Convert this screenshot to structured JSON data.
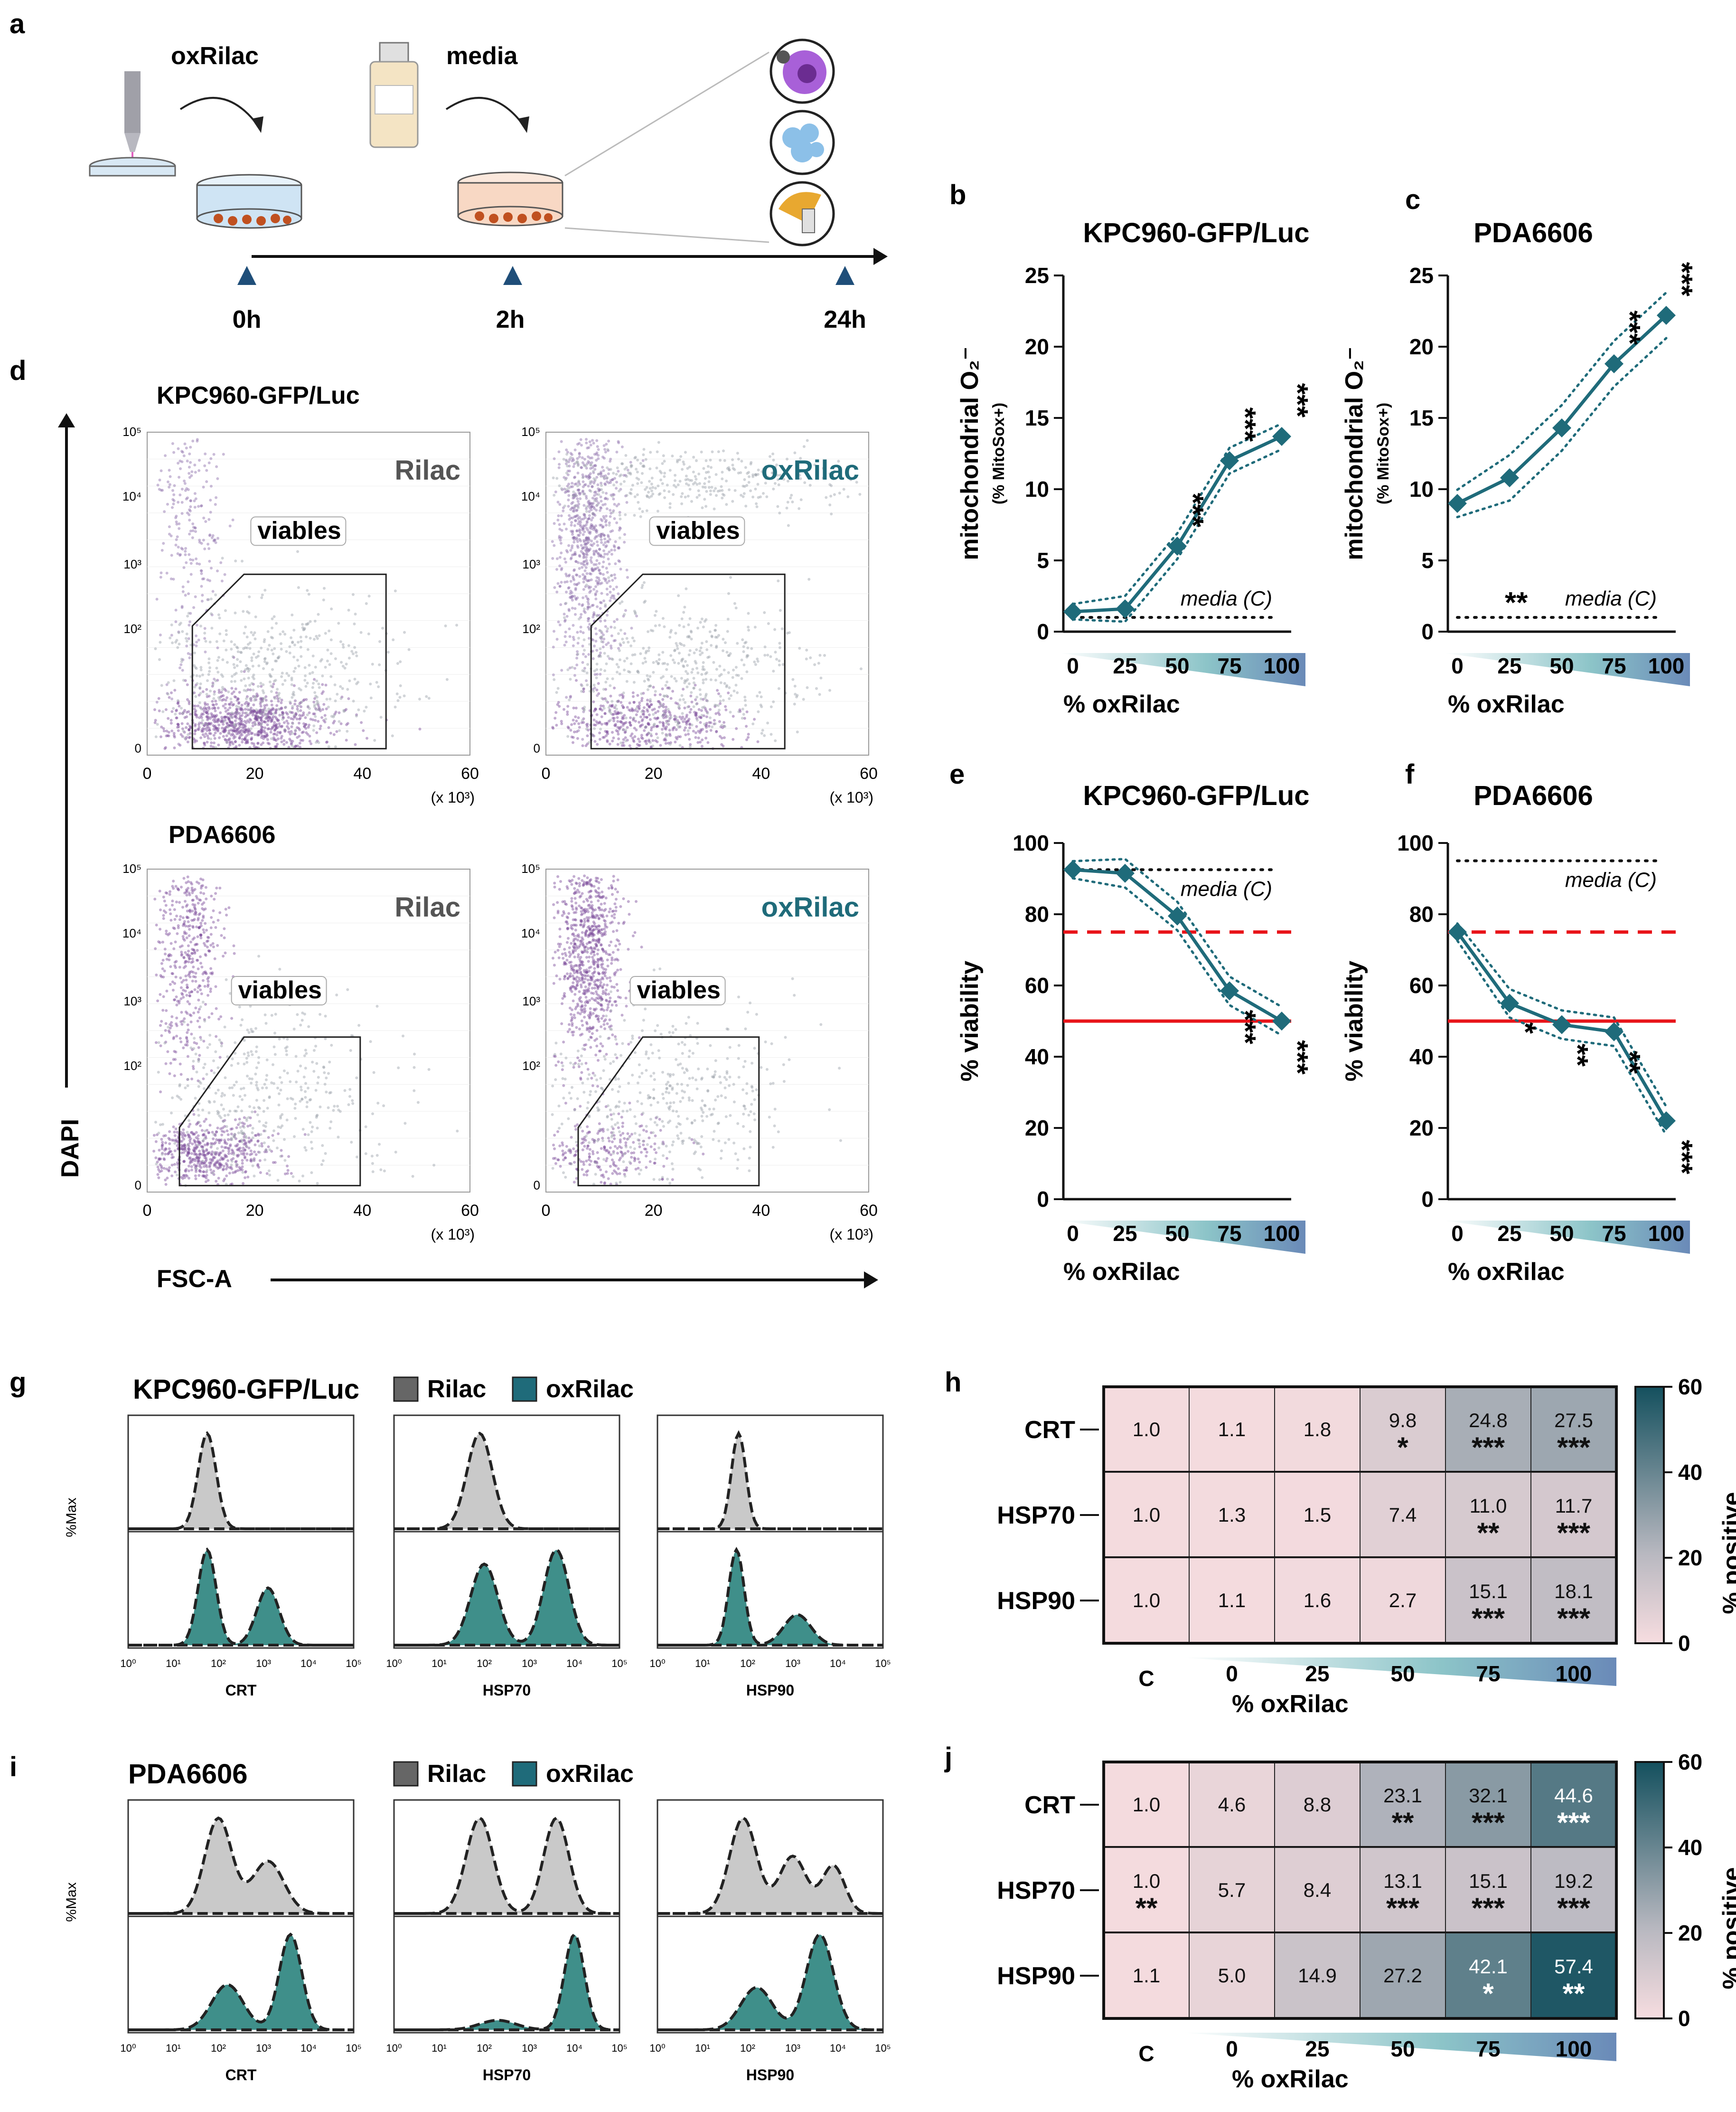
{
  "panel_letters": [
    "a",
    "b",
    "c",
    "d",
    "e",
    "f",
    "g",
    "h",
    "i",
    "j"
  ],
  "panel_a": {
    "labels": {
      "oxrilac": "oxRilac",
      "media": "media"
    },
    "timepoints": [
      "0h",
      "2h",
      "24h"
    ]
  },
  "panel_d": {
    "rows": [
      {
        "title": "KPC960-GFP/Luc",
        "plots": [
          {
            "label": "Rilac",
            "gate": "viables"
          },
          {
            "label": "oxRilac",
            "gate": "viables"
          }
        ]
      },
      {
        "title": "PDA6606",
        "plots": [
          {
            "label": "Rilac",
            "gate": "viables"
          },
          {
            "label": "oxRilac",
            "gate": "viables"
          }
        ]
      }
    ],
    "y_ticks": [
      "10⁵",
      "10⁴",
      "10³",
      "10²",
      "0"
    ],
    "x_ticks": [
      "0",
      "20",
      "40",
      "60"
    ],
    "x_multiplier": "(x 10³)",
    "y_axis_label": "DAPI",
    "x_axis_label": "FSC-A"
  },
  "chart_data": [
    {
      "panel": "b",
      "type": "line",
      "title": "KPC960-GFP/Luc",
      "ylabel": "mitochondrial O₂⁻",
      "ylabel_sub": "(% MitoSox+)",
      "xlabel": "% oxRilac",
      "x": [
        "0",
        "25",
        "50",
        "75",
        "100"
      ],
      "y_ticks": [
        "0",
        "5",
        "10",
        "15",
        "20",
        "25"
      ],
      "ylim": [
        0,
        25
      ],
      "series": [
        {
          "name": "oxRilac",
          "values": [
            1.4,
            1.6,
            6.0,
            12.0,
            13.7
          ]
        }
      ],
      "ci_band": 0.9,
      "reference": {
        "label": "media (C)",
        "value": 1.0
      },
      "significance": [
        "",
        "",
        "***",
        "***",
        "***"
      ],
      "ref_stars": ""
    },
    {
      "panel": "c",
      "type": "line",
      "title": "PDA6606",
      "ylabel": "mitochondrial O₂⁻",
      "ylabel_sub": "(% MitoSox+)",
      "xlabel": "% oxRilac",
      "x": [
        "0",
        "25",
        "50",
        "75",
        "100"
      ],
      "y_ticks": [
        "0",
        "5",
        "10",
        "15",
        "20",
        "25"
      ],
      "ylim": [
        0,
        25
      ],
      "series": [
        {
          "name": "oxRilac",
          "values": [
            9.0,
            10.8,
            14.3,
            18.8,
            22.2
          ]
        }
      ],
      "ci_band": 1.6,
      "reference": {
        "label": "media (C)",
        "value": 1.0
      },
      "significance": [
        "",
        "",
        "",
        "***",
        "***"
      ],
      "ref_stars": "**"
    },
    {
      "panel": "e",
      "type": "line",
      "title": "KPC960-GFP/Luc",
      "ylabel": "% viability",
      "ylabel_sub": "",
      "xlabel": "% oxRilac",
      "x": [
        "0",
        "25",
        "50",
        "75",
        "100"
      ],
      "y_ticks": [
        "0",
        "20",
        "40",
        "60",
        "80",
        "100"
      ],
      "ylim": [
        0,
        100
      ],
      "series": [
        {
          "name": "oxRilac",
          "values": [
            92.5,
            91.5,
            79.5,
            58.5,
            50.0
          ]
        }
      ],
      "ci_band": 4,
      "reference": {
        "label": "media (C)",
        "value": 92.5
      },
      "thresholds": [
        {
          "value": 75,
          "style": "dashed"
        },
        {
          "value": 50,
          "style": "solid"
        }
      ],
      "significance": [
        "",
        "",
        "",
        "***",
        "***"
      ],
      "ref_stars": ""
    },
    {
      "panel": "f",
      "type": "line",
      "title": "PDA6606",
      "ylabel": "% viability",
      "ylabel_sub": "",
      "xlabel": "% oxRilac",
      "x": [
        "0",
        "25",
        "50",
        "75",
        "100"
      ],
      "y_ticks": [
        "0",
        "20",
        "40",
        "60",
        "80",
        "100"
      ],
      "ylim": [
        0,
        100
      ],
      "series": [
        {
          "name": "oxRilac",
          "values": [
            75.0,
            55.0,
            49.0,
            47.0,
            22.0
          ]
        }
      ],
      "ci_band": 4,
      "reference": {
        "label": "media (C)",
        "value": 95.0
      },
      "thresholds": [
        {
          "value": 75,
          "style": "dashed"
        },
        {
          "value": 50,
          "style": "solid"
        }
      ],
      "significance": [
        "",
        "*",
        "**",
        "**",
        "***"
      ],
      "ref_stars": ""
    },
    {
      "panel": "h",
      "type": "heatmap",
      "title": "",
      "rows": [
        "CRT",
        "HSP70",
        "HSP90"
      ],
      "cols": [
        "C",
        "0",
        "25",
        "50",
        "75",
        "100"
      ],
      "values": [
        [
          1.0,
          1.1,
          1.8,
          9.8,
          24.8,
          27.5
        ],
        [
          1.0,
          1.3,
          1.5,
          7.4,
          11.0,
          11.7
        ],
        [
          1.0,
          1.1,
          1.6,
          2.7,
          15.1,
          18.1
        ]
      ],
      "stars": [
        [
          "",
          "",
          "",
          "*",
          "***",
          "***"
        ],
        [
          "",
          "",
          "",
          "",
          "**",
          "***"
        ],
        [
          "",
          "",
          "",
          "",
          "***",
          "***"
        ]
      ],
      "xlabel": "% oxRilac",
      "colorbar_label": "% positive",
      "colorbar_ticks": [
        "0",
        "20",
        "40",
        "60"
      ],
      "range": [
        0,
        60
      ]
    },
    {
      "panel": "j",
      "type": "heatmap",
      "title": "",
      "rows": [
        "CRT",
        "HSP70",
        "HSP90"
      ],
      "cols": [
        "C",
        "0",
        "25",
        "50",
        "75",
        "100"
      ],
      "values": [
        [
          1.0,
          4.6,
          8.8,
          23.1,
          32.1,
          44.6
        ],
        [
          1.0,
          5.7,
          8.4,
          13.1,
          15.1,
          19.2
        ],
        [
          1.1,
          5.0,
          14.9,
          27.2,
          42.1,
          57.4
        ]
      ],
      "stars": [
        [
          "",
          "",
          "",
          "**",
          "***",
          "***"
        ],
        [
          "**",
          "",
          "",
          "***",
          "***",
          "***"
        ],
        [
          "",
          "",
          "",
          "",
          "*",
          "**"
        ]
      ],
      "xlabel": "% oxRilac",
      "colorbar_label": "% positive",
      "colorbar_ticks": [
        "0",
        "20",
        "40",
        "60"
      ],
      "range": [
        0,
        60
      ]
    }
  ],
  "histograms": [
    {
      "panel": "g",
      "title": "KPC960-GFP/Luc",
      "legend": [
        "Rilac",
        "oxRilac"
      ],
      "ylabel": "%Max",
      "x_ticks": [
        "10⁰",
        "10¹",
        "10²",
        "10³",
        "10⁴",
        "10⁵"
      ],
      "markers": [
        "CRT",
        "HSP70",
        "HSP90"
      ],
      "rilac_peaks": [
        [
          1.75,
          0.2,
          1
        ]
      ],
      "oxrilac_peaks": [
        [
          1.75,
          0.2,
          1
        ],
        [
          3.1,
          0.25,
          0.6
        ]
      ],
      "markers_peaks": {
        "CRT": {
          "rilac": [
            [
              1.75,
              0.2,
              1
            ]
          ],
          "oxrilac": [
            [
              1.75,
              0.2,
              1
            ],
            [
              3.1,
              0.25,
              0.6
            ]
          ]
        },
        "HSP70": {
          "rilac": [
            [
              1.9,
              0.28,
              1
            ]
          ],
          "oxrilac": [
            [
              2.0,
              0.3,
              0.85
            ],
            [
              3.6,
              0.28,
              1
            ]
          ]
        },
        "HSP90": {
          "rilac": [
            [
              1.8,
              0.16,
              1
            ]
          ],
          "oxrilac": [
            [
              1.75,
              0.17,
              1
            ],
            [
              3.1,
              0.3,
              0.32
            ]
          ]
        }
      }
    },
    {
      "panel": "i",
      "title": "PDA6606",
      "legend": [
        "Rilac",
        "oxRilac"
      ],
      "ylabel": "%Max",
      "x_ticks": [
        "10⁰",
        "10¹",
        "10²",
        "10³",
        "10⁴",
        "10⁵"
      ],
      "markers": [
        "CRT",
        "HSP70",
        "HSP90"
      ],
      "markers_peaks": {
        "CRT": {
          "rilac": [
            [
              2.0,
              0.3,
              1
            ],
            [
              3.1,
              0.35,
              0.55
            ]
          ],
          "oxrilac": [
            [
              2.2,
              0.35,
              0.45
            ],
            [
              3.6,
              0.25,
              0.95
            ]
          ]
        },
        "HSP70": {
          "rilac": [
            [
              1.9,
              0.3,
              0.95
            ],
            [
              3.6,
              0.28,
              0.95
            ]
          ],
          "oxrilac": [
            [
              2.3,
              0.4,
              0.1
            ],
            [
              4.0,
              0.22,
              1
            ]
          ]
        },
        "HSP90": {
          "rilac": [
            [
              1.9,
              0.3,
              1
            ],
            [
              3.0,
              0.3,
              0.6
            ],
            [
              3.9,
              0.25,
              0.5
            ]
          ],
          "oxrilac": [
            [
              2.2,
              0.35,
              0.4
            ],
            [
              3.6,
              0.3,
              0.9
            ]
          ]
        }
      }
    }
  ],
  "colors": {
    "teal": "#1f6b7a",
    "red": "#e8141a",
    "rilac_fill": "#c9c9c9",
    "oxrilac_fill": "#3f8f8a",
    "heat_low": "#f7dde0",
    "heat_high": "#14505e",
    "purple": "#6b2c91",
    "dots": "#9aa0a8"
  }
}
